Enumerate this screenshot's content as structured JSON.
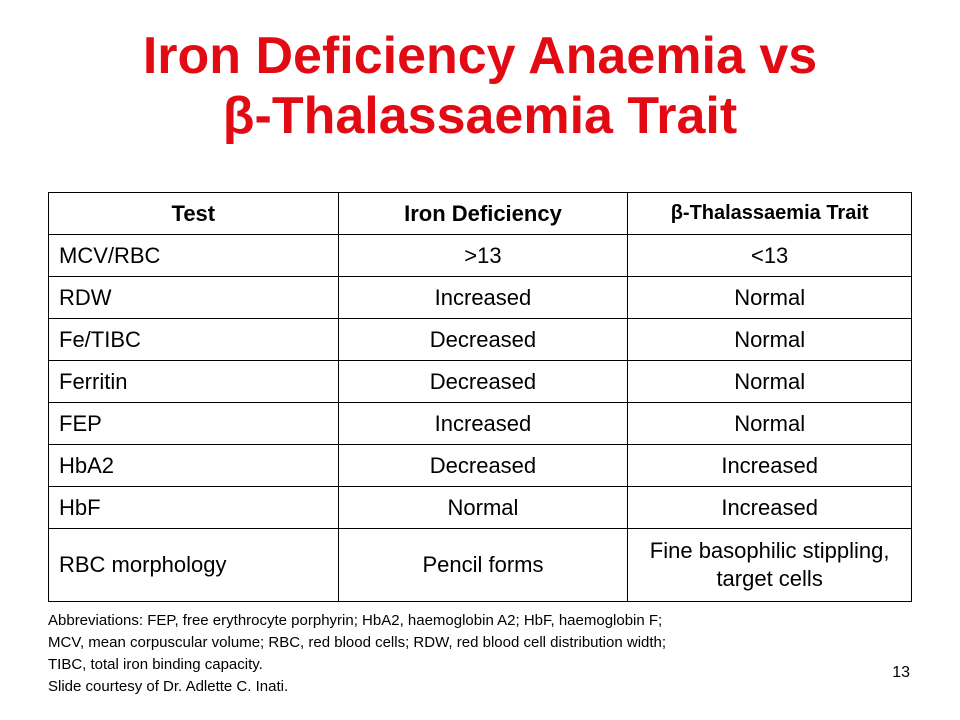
{
  "title": {
    "line1": "Iron Deficiency Anaemia vs",
    "line2": "β-Thalassaemia Trait"
  },
  "table": {
    "headers": [
      "Test",
      "Iron Deficiency",
      "β-Thalassaemia Trait"
    ],
    "rows": [
      [
        "MCV/RBC",
        ">13",
        "<13"
      ],
      [
        "RDW",
        "Increased",
        "Normal"
      ],
      [
        "Fe/TIBC",
        "Decreased",
        "Normal"
      ],
      [
        "Ferritin",
        "Decreased",
        "Normal"
      ],
      [
        "FEP",
        "Increased",
        "Normal"
      ],
      [
        "HbA2",
        "Decreased",
        "Increased"
      ],
      [
        "HbF",
        "Normal",
        "Increased"
      ],
      [
        "RBC morphology",
        "Pencil forms",
        "Fine basophilic stippling, target cells"
      ]
    ]
  },
  "footer": {
    "line1": "Abbreviations: FEP, free erythrocyte porphyrin; HbA2, haemoglobin A2; HbF, haemoglobin F;",
    "line2": "MCV, mean corpuscular volume; RBC, red blood cells; RDW, red blood cell distribution width;",
    "line3": "TIBC, total iron binding capacity.",
    "line4": "Slide courtesy of Dr. Adlette C. Inati."
  },
  "page_number": "13",
  "colors": {
    "title": "#e30b13",
    "text": "#000000",
    "background": "#ffffff"
  }
}
